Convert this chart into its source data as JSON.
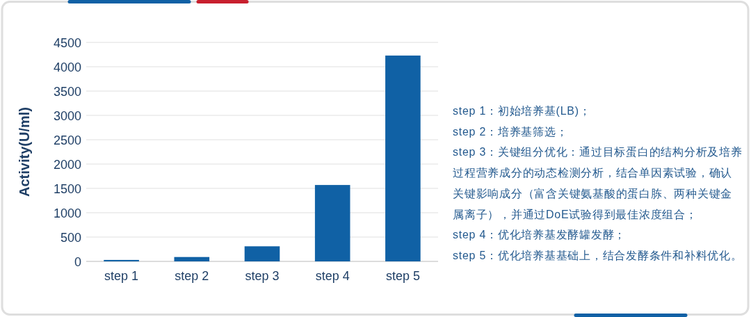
{
  "chart_data": {
    "type": "bar",
    "categories": [
      "step 1",
      "step 2",
      "step 3",
      "step 4",
      "step 5"
    ],
    "values": [
      30,
      90,
      310,
      1570,
      4230
    ],
    "color": "#1061a5",
    "ylabel": "Activity(U/ml)",
    "ylim": [
      0,
      4500
    ],
    "yticks": [
      0,
      500,
      1000,
      1500,
      2000,
      2500,
      3000,
      3500,
      4000,
      4500
    ],
    "grid": "y",
    "annotations": [
      "step 1：初始培养基(LB)；",
      "step 2：培养基筛选；",
      "step 3：关键组分优化：通过目标蛋白的结构分析及培养过程营养成分的动态检测分析，结合单因素试验，确认关键影响成分（富含关键氨基酸的蛋白胨、两种关键金属离子），并通过DoE试验得到最佳浓度组合；",
      "step 4：优化培养基发酵罐发酵；",
      "step 5：优化培养基基础上，结合发酵条件和补料优化。"
    ]
  }
}
